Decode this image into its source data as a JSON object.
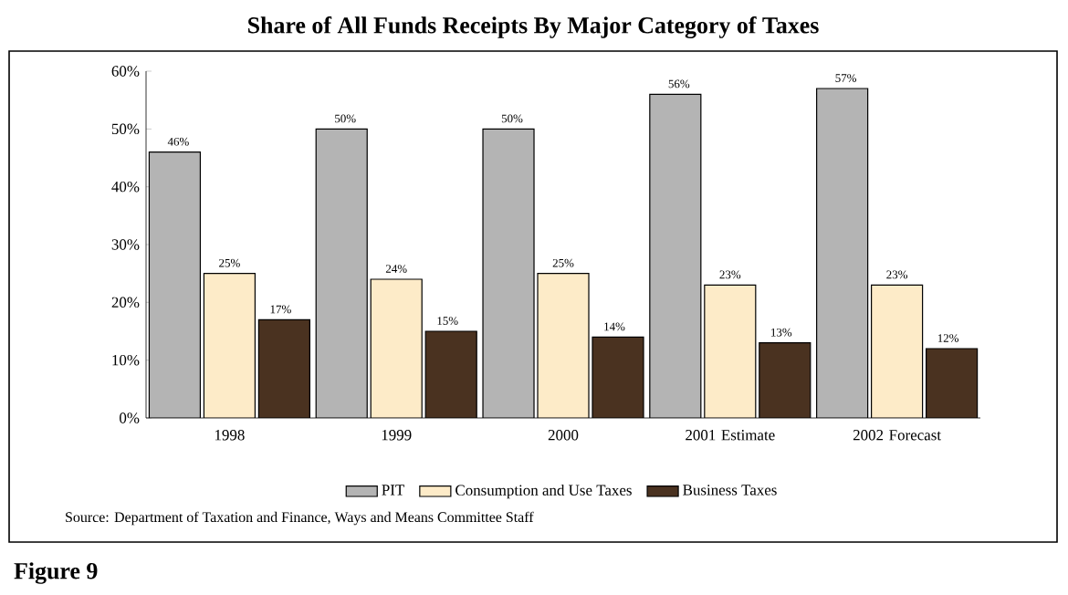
{
  "chart_data": {
    "type": "bar",
    "title": "Share of All Funds Receipts By Major Category of Taxes",
    "categories": [
      "1998",
      "1999",
      "2000",
      "2001 Estimate",
      "2002 Forecast"
    ],
    "series": [
      {
        "name": "PIT",
        "color": "#b4b4b4",
        "values": [
          46,
          50,
          50,
          56,
          57
        ],
        "value_labels": [
          "46%",
          "50%",
          "50%",
          "56%",
          "57%"
        ]
      },
      {
        "name": "Consumption and Use Taxes",
        "color": "#fdebc8",
        "values": [
          25,
          24,
          25,
          23,
          23
        ],
        "value_labels": [
          "25%",
          "24%",
          "25%",
          "23%",
          "23%"
        ]
      },
      {
        "name": "Business Taxes",
        "color": "#4a3220",
        "values": [
          17,
          15,
          14,
          13,
          12
        ],
        "value_labels": [
          "17%",
          "15%",
          "14%",
          "13%",
          "12%"
        ]
      }
    ],
    "ylim": [
      0,
      60
    ],
    "yticks": [
      {
        "value": 0,
        "label": "0%"
      },
      {
        "value": 10,
        "label": "10%"
      },
      {
        "value": 20,
        "label": "20%"
      },
      {
        "value": 30,
        "label": "30%"
      },
      {
        "value": 40,
        "label": "40%"
      },
      {
        "value": 50,
        "label": "50%"
      },
      {
        "value": 60,
        "label": "60%"
      }
    ],
    "grid": false,
    "legend": "bottom",
    "annotations": [
      "Source: Department of Taxation and Finance, Ways and Means Committee Staff",
      "Figure 9"
    ]
  }
}
